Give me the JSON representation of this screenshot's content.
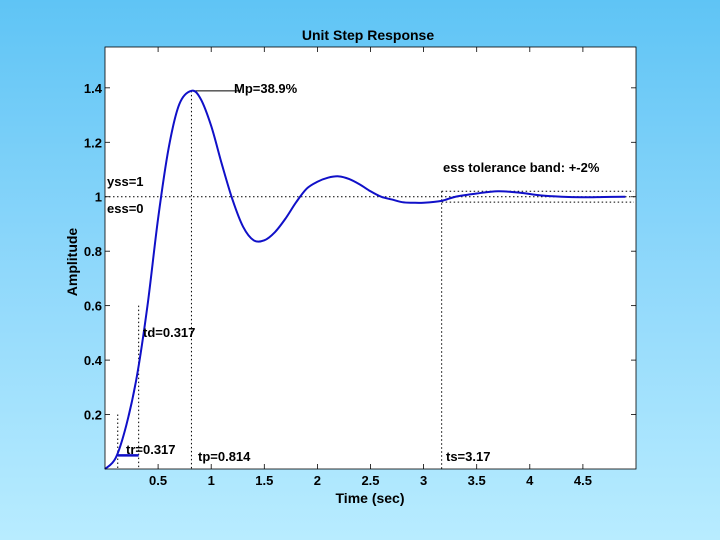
{
  "chart_data": {
    "type": "line",
    "title": "Unit Step Response",
    "xlabel": "Time (sec)",
    "ylabel": "Amplitude",
    "xlim": [
      0,
      5
    ],
    "ylim": [
      0,
      1.55
    ],
    "xticks": [
      0.5,
      1,
      1.5,
      2,
      2.5,
      3,
      3.5,
      4,
      4.5
    ],
    "xtick_labels": [
      "0.5",
      "1",
      "1.5",
      "2",
      "2.5",
      "3",
      "3.5",
      "4",
      "4.5"
    ],
    "yticks": [
      0.2,
      0.4,
      0.6,
      0.8,
      1,
      1.2,
      1.4
    ],
    "ytick_labels": [
      "0.2",
      "0.4",
      "0.6",
      "0.8",
      "1",
      "1.2",
      "1.4"
    ],
    "grid": false,
    "series": [
      {
        "color": "#1010c8",
        "x": [
          0,
          0.1,
          0.2,
          0.3,
          0.4,
          0.5,
          0.6,
          0.7,
          0.814,
          0.9,
          1.0,
          1.1,
          1.2,
          1.3,
          1.4,
          1.5,
          1.6,
          1.7,
          1.8,
          1.9,
          2.0,
          2.1,
          2.2,
          2.3,
          2.4,
          2.5,
          2.6,
          2.7,
          2.8,
          2.9,
          3.0,
          3.17,
          3.3,
          3.5,
          3.7,
          3.9,
          4.1,
          4.3,
          4.5,
          4.7,
          4.9
        ],
        "y": [
          0,
          0.04,
          0.16,
          0.34,
          0.6,
          0.92,
          1.18,
          1.34,
          1.389,
          1.36,
          1.26,
          1.12,
          0.99,
          0.89,
          0.84,
          0.84,
          0.87,
          0.92,
          0.98,
          1.03,
          1.055,
          1.07,
          1.075,
          1.065,
          1.045,
          1.02,
          1.0,
          0.99,
          0.98,
          0.978,
          0.978,
          0.985,
          1.0,
          1.012,
          1.02,
          1.015,
          1.005,
          1.0,
          0.998,
          0.999,
          1.0
        ]
      }
    ],
    "annotations": {
      "mp": "Mp=38.9%",
      "yss": "yss=1",
      "ess": "ess=0",
      "td": "td=0.317",
      "tr": "tr=0.317",
      "tp": "tp=0.814",
      "ts": "ts=3.17",
      "band": "ess tolerance band: +-2%"
    }
  }
}
